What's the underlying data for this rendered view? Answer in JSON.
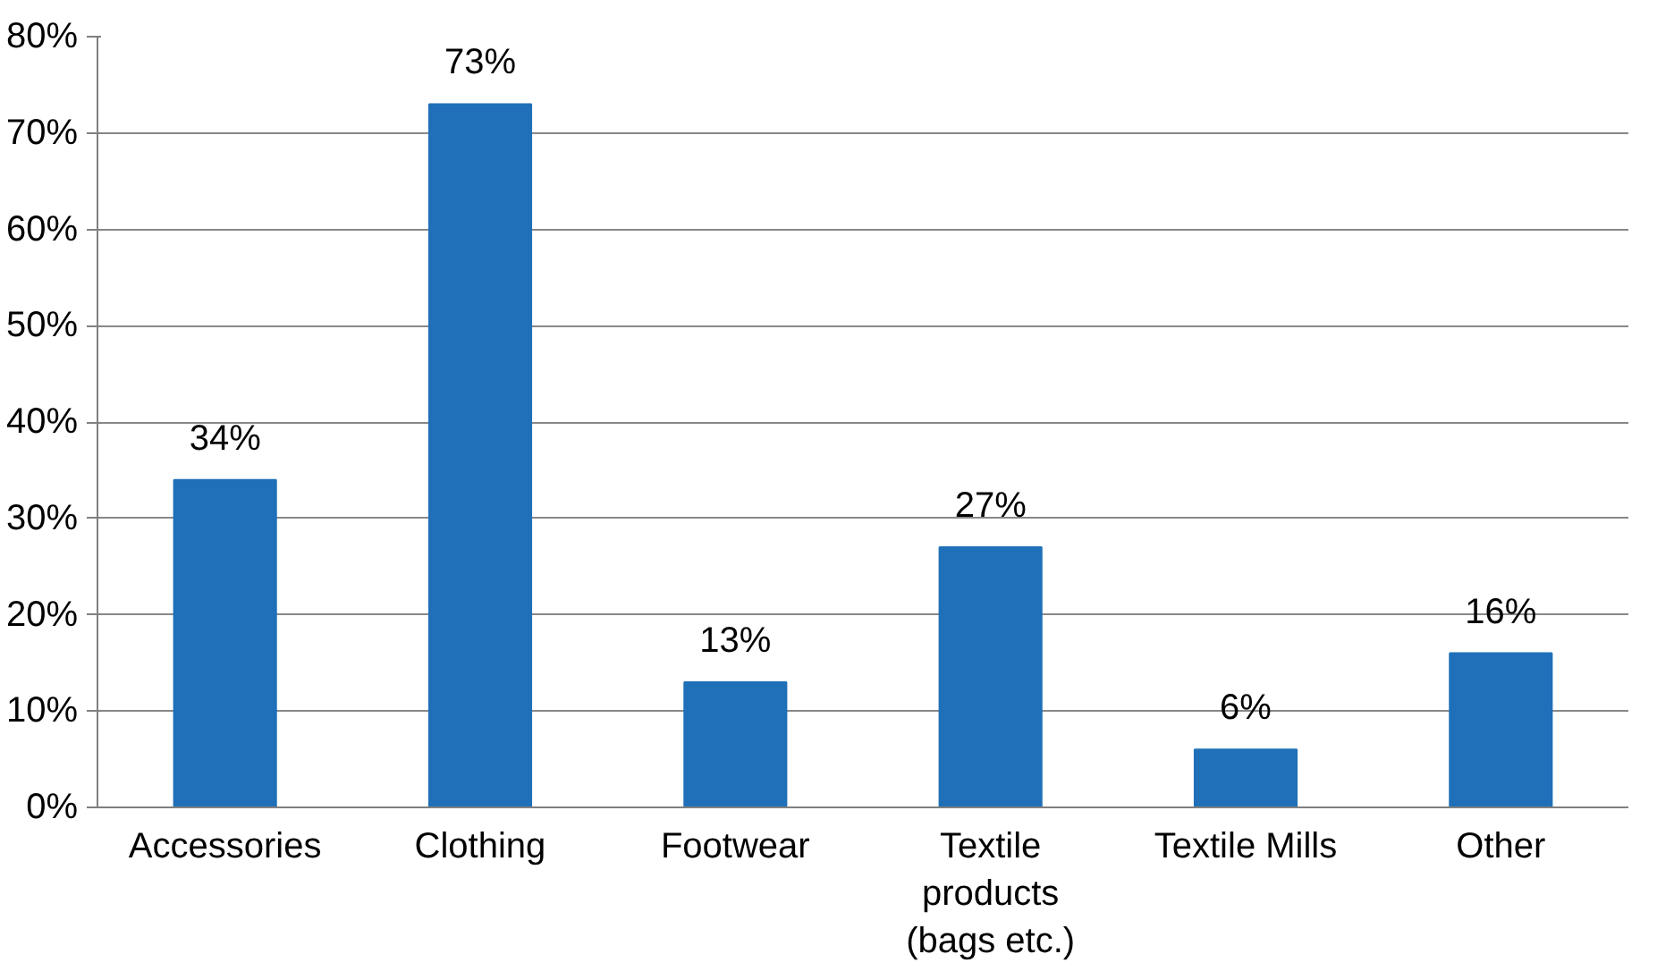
{
  "chart_data": {
    "type": "bar",
    "categories": [
      "Accessories",
      "Clothing",
      "Footwear",
      "Textile products (bags etc.)",
      "Textile Mills",
      "Other"
    ],
    "values": [
      34,
      73,
      13,
      27,
      6,
      16
    ],
    "value_labels": [
      "34%",
      "73%",
      "13%",
      "27%",
      "6%",
      "16%"
    ],
    "color": "#1f70b8",
    "ylim": [
      0,
      80
    ],
    "yticks": [
      {
        "value": 0,
        "label": "0%"
      },
      {
        "value": 10,
        "label": "10%"
      },
      {
        "value": 20,
        "label": "20%"
      },
      {
        "value": 30,
        "label": "30%"
      },
      {
        "value": 40,
        "label": "40%"
      },
      {
        "value": 50,
        "label": "50%"
      },
      {
        "value": 60,
        "label": "60%"
      },
      {
        "value": 70,
        "label": "70%"
      },
      {
        "value": 80,
        "label": "80%"
      }
    ],
    "grid": "y"
  }
}
